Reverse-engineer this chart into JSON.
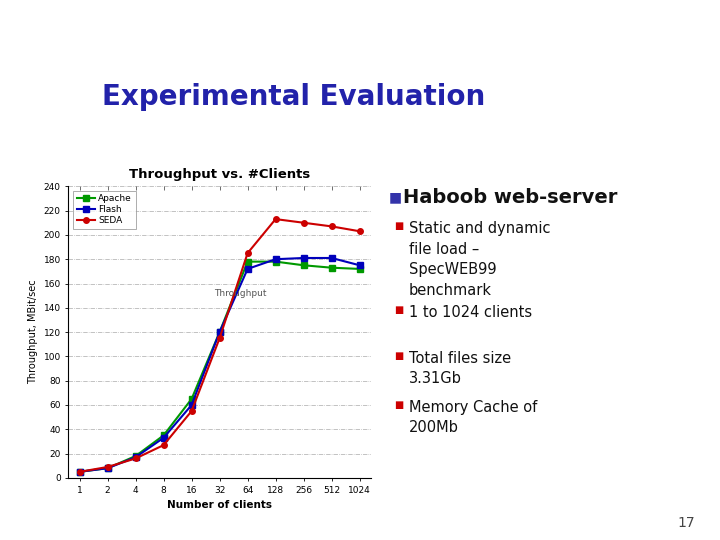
{
  "title": "Experimental Evaluation",
  "chart_title": "Throughput vs. #Clients",
  "xlabel": "Number of clients",
  "ylabel": "Throughput, MBit/sec",
  "x_clients": [
    1,
    2,
    4,
    8,
    16,
    32,
    64,
    128,
    256,
    512,
    1024
  ],
  "apache": [
    5,
    8,
    18,
    35,
    65,
    120,
    178,
    178,
    175,
    173,
    172
  ],
  "flash": [
    5,
    8,
    17,
    33,
    60,
    120,
    172,
    180,
    181,
    181,
    175
  ],
  "seda": [
    5,
    9,
    16,
    27,
    55,
    115,
    185,
    213,
    210,
    207,
    203
  ],
  "apache_color": "#009900",
  "flash_color": "#0000bb",
  "seda_color": "#cc0000",
  "ylim": [
    0,
    240
  ],
  "yticks": [
    0,
    20,
    40,
    60,
    80,
    100,
    120,
    140,
    160,
    180,
    200,
    220,
    240
  ],
  "bullet_color": "#cc0000",
  "haboob_title": "Haboob web-server",
  "bullet_points": [
    "Static and dynamic\nfile load –\nSpecWEB99\nbenchmark",
    "1 to 1024 clients",
    "Total files size\n3.31Gb",
    "Memory Cache of\n200Mb"
  ],
  "slide_title_color": "#2222aa",
  "page_number": "17",
  "background_color": "#ffffff",
  "annotation_text": "Throughput",
  "haboob_bullet_color": "#3333aa",
  "yellow_color": "#FFD700",
  "red_color": "#dd4444",
  "blue_color": "#6666cc",
  "darkblue_color": "#1a1a7a"
}
